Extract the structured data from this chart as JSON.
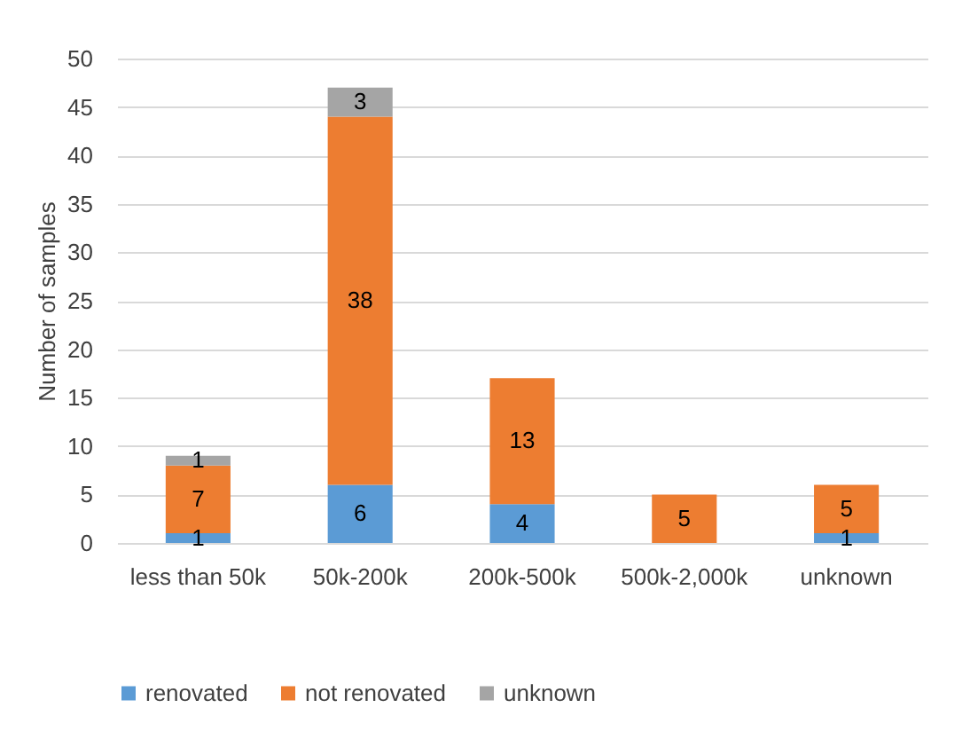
{
  "chart_data": {
    "type": "bar",
    "stacked": true,
    "ylabel": "Number of samples",
    "categories": [
      "less than 50k",
      "50k-200k",
      "200k-500k",
      "500k-2,000k",
      "unknown"
    ],
    "series": [
      {
        "name": "renovated",
        "color": "#5b9bd5",
        "values": [
          1,
          6,
          4,
          null,
          1
        ]
      },
      {
        "name": "not renovated",
        "color": "#ed7d31",
        "values": [
          7,
          38,
          13,
          5,
          5
        ]
      },
      {
        "name": "unknown",
        "color": "#a5a5a5",
        "values": [
          1,
          3,
          null,
          null,
          null
        ]
      }
    ],
    "ylim": [
      0,
      50
    ],
    "yticks": [
      0,
      5,
      10,
      15,
      20,
      25,
      30,
      35,
      40,
      45,
      50
    ],
    "grid": "y",
    "legend": "bottom",
    "data_labels": true
  }
}
